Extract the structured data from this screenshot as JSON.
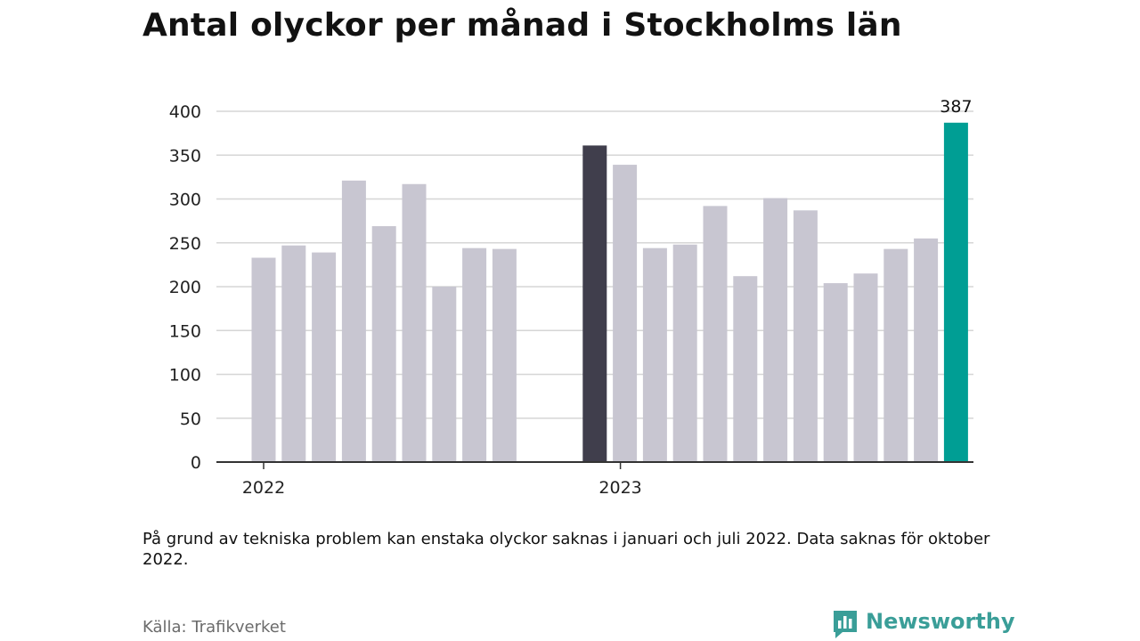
{
  "title": "Antal olyckor per månad i Stockholms län",
  "note": "På grund av tekniska problem kan enstaka olyckor saknas i januari och juli 2022. Data saknas för oktober 2022.",
  "source": "Källa: Trafikverket",
  "brand": {
    "name": "Newsworthy",
    "icon": "newsworthy-logo-icon",
    "color": "#3a9e98"
  },
  "chart_data": {
    "type": "bar",
    "title": "Antal olyckor per månad i Stockholms län",
    "xlabel": "",
    "ylabel": "",
    "ylim": [
      0,
      400
    ],
    "yticks": [
      0,
      50,
      100,
      150,
      200,
      250,
      300,
      350,
      400
    ],
    "grid": true,
    "x_year_labels": [
      "2022",
      "2023"
    ],
    "categories": [
      "2022-01",
      "2022-02",
      "2022-03",
      "2022-04",
      "2022-05",
      "2022-06",
      "2022-07",
      "2022-08",
      "2022-09",
      "2022-10",
      "2022-11",
      "2022-12",
      "2023-01",
      "2023-02",
      "2023-03",
      "2023-04",
      "2023-05",
      "2023-06",
      "2023-07",
      "2023-08",
      "2023-09",
      "2023-10",
      "2023-11",
      "2023-12"
    ],
    "values": [
      233,
      247,
      239,
      321,
      269,
      317,
      200,
      244,
      243,
      null,
      null,
      361,
      339,
      244,
      248,
      292,
      212,
      301,
      287,
      204,
      215,
      243,
      255,
      387
    ],
    "data_labels": [
      {
        "category": "2023-12",
        "text": "387"
      }
    ],
    "colors": {
      "default": "#c8c6d1",
      "highlight_dark": "#403e4c",
      "highlight_latest": "#009e94",
      "grid": "#d6d6d6",
      "axis": "#333333",
      "tick_text": "#222222"
    },
    "highlight": {
      "2022-12": "highlight_dark",
      "2023-12": "highlight_latest"
    }
  }
}
